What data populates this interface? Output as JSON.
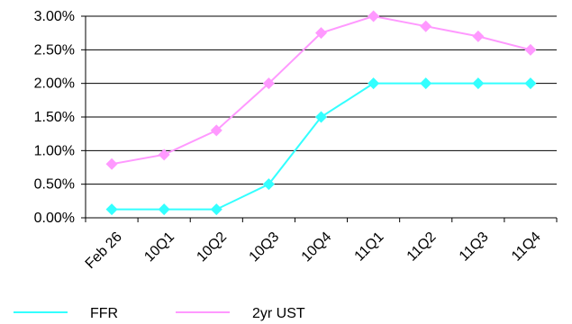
{
  "chart_data": {
    "type": "line",
    "categories": [
      "Feb 26",
      "10Q1",
      "10Q2",
      "10Q3",
      "10Q4",
      "11Q1",
      "11Q2",
      "11Q3",
      "11Q4"
    ],
    "series": [
      {
        "name": "FFR",
        "color": "#33ffff",
        "marker": "diamond",
        "values": [
          0.125,
          0.125,
          0.125,
          0.5,
          1.5,
          2.0,
          2.0,
          2.0,
          2.0
        ]
      },
      {
        "name": "2yr UST",
        "color": "#ff99ff",
        "marker": "diamond",
        "values": [
          0.8,
          0.94,
          1.3,
          2.0,
          2.75,
          3.0,
          2.85,
          2.7,
          2.5
        ]
      }
    ],
    "y_ticks": [
      "0.00%",
      "0.50%",
      "1.00%",
      "1.50%",
      "2.00%",
      "2.50%",
      "3.00%"
    ],
    "ylim": [
      0,
      3
    ],
    "title": "",
    "xlabel": "",
    "ylabel": "",
    "grid": "horizontal",
    "legend_position": "bottom-left"
  }
}
